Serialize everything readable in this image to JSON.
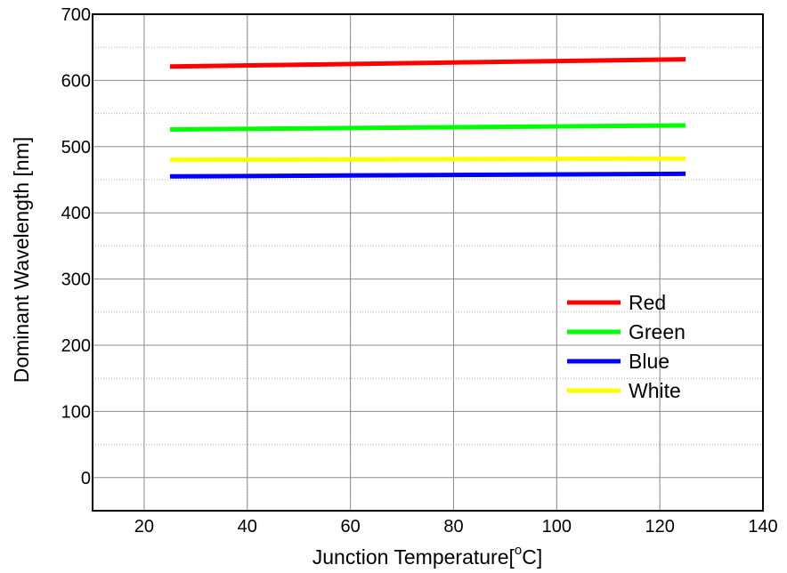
{
  "chart_data": {
    "type": "line",
    "title": "",
    "xlabel": "Junction Temperature[",
    "xlabel_superscript": "o",
    "xlabel_suffix": "C]",
    "ylabel": "Dominant Wavelength [nm]",
    "xlim": [
      10,
      140
    ],
    "ylim": [
      -50,
      700
    ],
    "xticks": [
      20,
      40,
      60,
      80,
      100,
      120,
      140
    ],
    "xtick_labels": [
      "20",
      "40",
      "60",
      "80",
      "100",
      "120",
      "140"
    ],
    "yticks": [
      0,
      100,
      200,
      300,
      400,
      500,
      600,
      700
    ],
    "ytick_labels": [
      "0",
      "100",
      "200",
      "300",
      "400",
      "500",
      "600",
      "700"
    ],
    "grid": true,
    "legend_position": "center-right",
    "series": [
      {
        "name": "Red",
        "color": "#ff0000",
        "x": [
          25,
          125
        ],
        "y": [
          621,
          632
        ]
      },
      {
        "name": "Green",
        "color": "#00ff00",
        "x": [
          25,
          125
        ],
        "y": [
          526,
          532
        ]
      },
      {
        "name": "Blue",
        "color": "#0000ff",
        "x": [
          25,
          125
        ],
        "y": [
          455,
          459
        ]
      },
      {
        "name": "White",
        "color": "#ffff00",
        "x": [
          25,
          125
        ],
        "y": [
          480,
          482
        ]
      }
    ]
  }
}
